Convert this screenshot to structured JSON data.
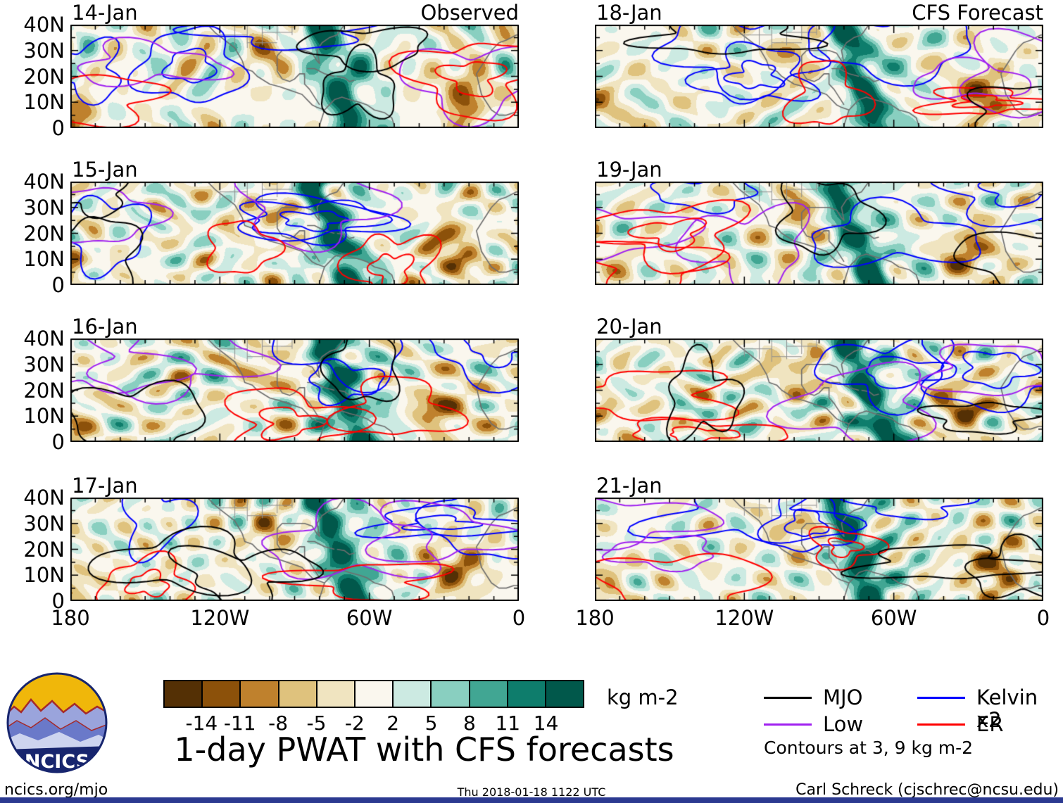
{
  "title": "1-day PWAT with CFS forecasts",
  "columns": [
    {
      "header": "Observed"
    },
    {
      "header": "CFS Forecast"
    }
  ],
  "panels": [
    {
      "date": "14-Jan",
      "col": 0,
      "row": 0
    },
    {
      "date": "15-Jan",
      "col": 0,
      "row": 1
    },
    {
      "date": "16-Jan",
      "col": 0,
      "row": 2
    },
    {
      "date": "17-Jan",
      "col": 0,
      "row": 3
    },
    {
      "date": "18-Jan",
      "col": 1,
      "row": 0
    },
    {
      "date": "19-Jan",
      "col": 1,
      "row": 1
    },
    {
      "date": "20-Jan",
      "col": 1,
      "row": 2
    },
    {
      "date": "21-Jan",
      "col": 1,
      "row": 3
    }
  ],
  "axes": {
    "lat": [
      "40N",
      "30N",
      "20N",
      "10N",
      "0"
    ],
    "lon": [
      "180",
      "120W",
      "60W",
      "0"
    ]
  },
  "colorbar": {
    "ticks": [
      "-14",
      "-11",
      "-8",
      "-5",
      "-2",
      "2",
      "5",
      "8",
      "11",
      "14"
    ],
    "units": "kg m-2",
    "colors": [
      "#543005",
      "#8C510A",
      "#BF812D",
      "#DFC27D",
      "#F0E4C0",
      "#FAF7EE",
      "#CCEAE2",
      "#89CFC0",
      "#41A693",
      "#0E7D6C",
      "#01584B"
    ]
  },
  "legend": {
    "items": [
      {
        "label": "MJO",
        "color": "#000000"
      },
      {
        "label": "Kelvin x2",
        "color": "#0000FF"
      },
      {
        "label": "Low",
        "color": "#A020F0"
      },
      {
        "label": "ER",
        "color": "#FF0000"
      }
    ],
    "note": "Contours at 3, 9 kg m-2"
  },
  "logo": {
    "text": "NCICS"
  },
  "footer": {
    "left": "ncics.org/mjo",
    "center": "Thu 2018-01-18 1122 UTC",
    "right": "Carl Schreck (cjschrec@ncsu.edu)"
  },
  "chart_data": {
    "type": "heatmap",
    "title": "1-day PWAT with CFS forecasts",
    "variable": "1-day precipitable water (PWAT) anomaly",
    "units": "kg m-2",
    "levels": [
      -14,
      -11,
      -8,
      -5,
      -2,
      2,
      5,
      8,
      11,
      14
    ],
    "lat_range": "0 to 40N",
    "lon_range": "180 to 0 (degrees west)",
    "grid": "2 columns x 4 rows of map panels",
    "columns": [
      {
        "header": "Observed",
        "dates": [
          "14-Jan",
          "15-Jan",
          "16-Jan",
          "17-Jan"
        ]
      },
      {
        "header": "CFS Forecast",
        "dates": [
          "18-Jan",
          "19-Jan",
          "20-Jan",
          "21-Jan"
        ]
      }
    ],
    "contour_overlays": [
      {
        "name": "MJO",
        "color": "#000000"
      },
      {
        "name": "Kelvin x2",
        "color": "#0000FF"
      },
      {
        "name": "Low",
        "color": "#A020F0"
      },
      {
        "name": "ER",
        "color": "#FF0000"
      }
    ],
    "contour_levels_kg_m2": [
      3,
      9
    ],
    "generated": "Thu 2018-01-18 1122 UTC"
  }
}
